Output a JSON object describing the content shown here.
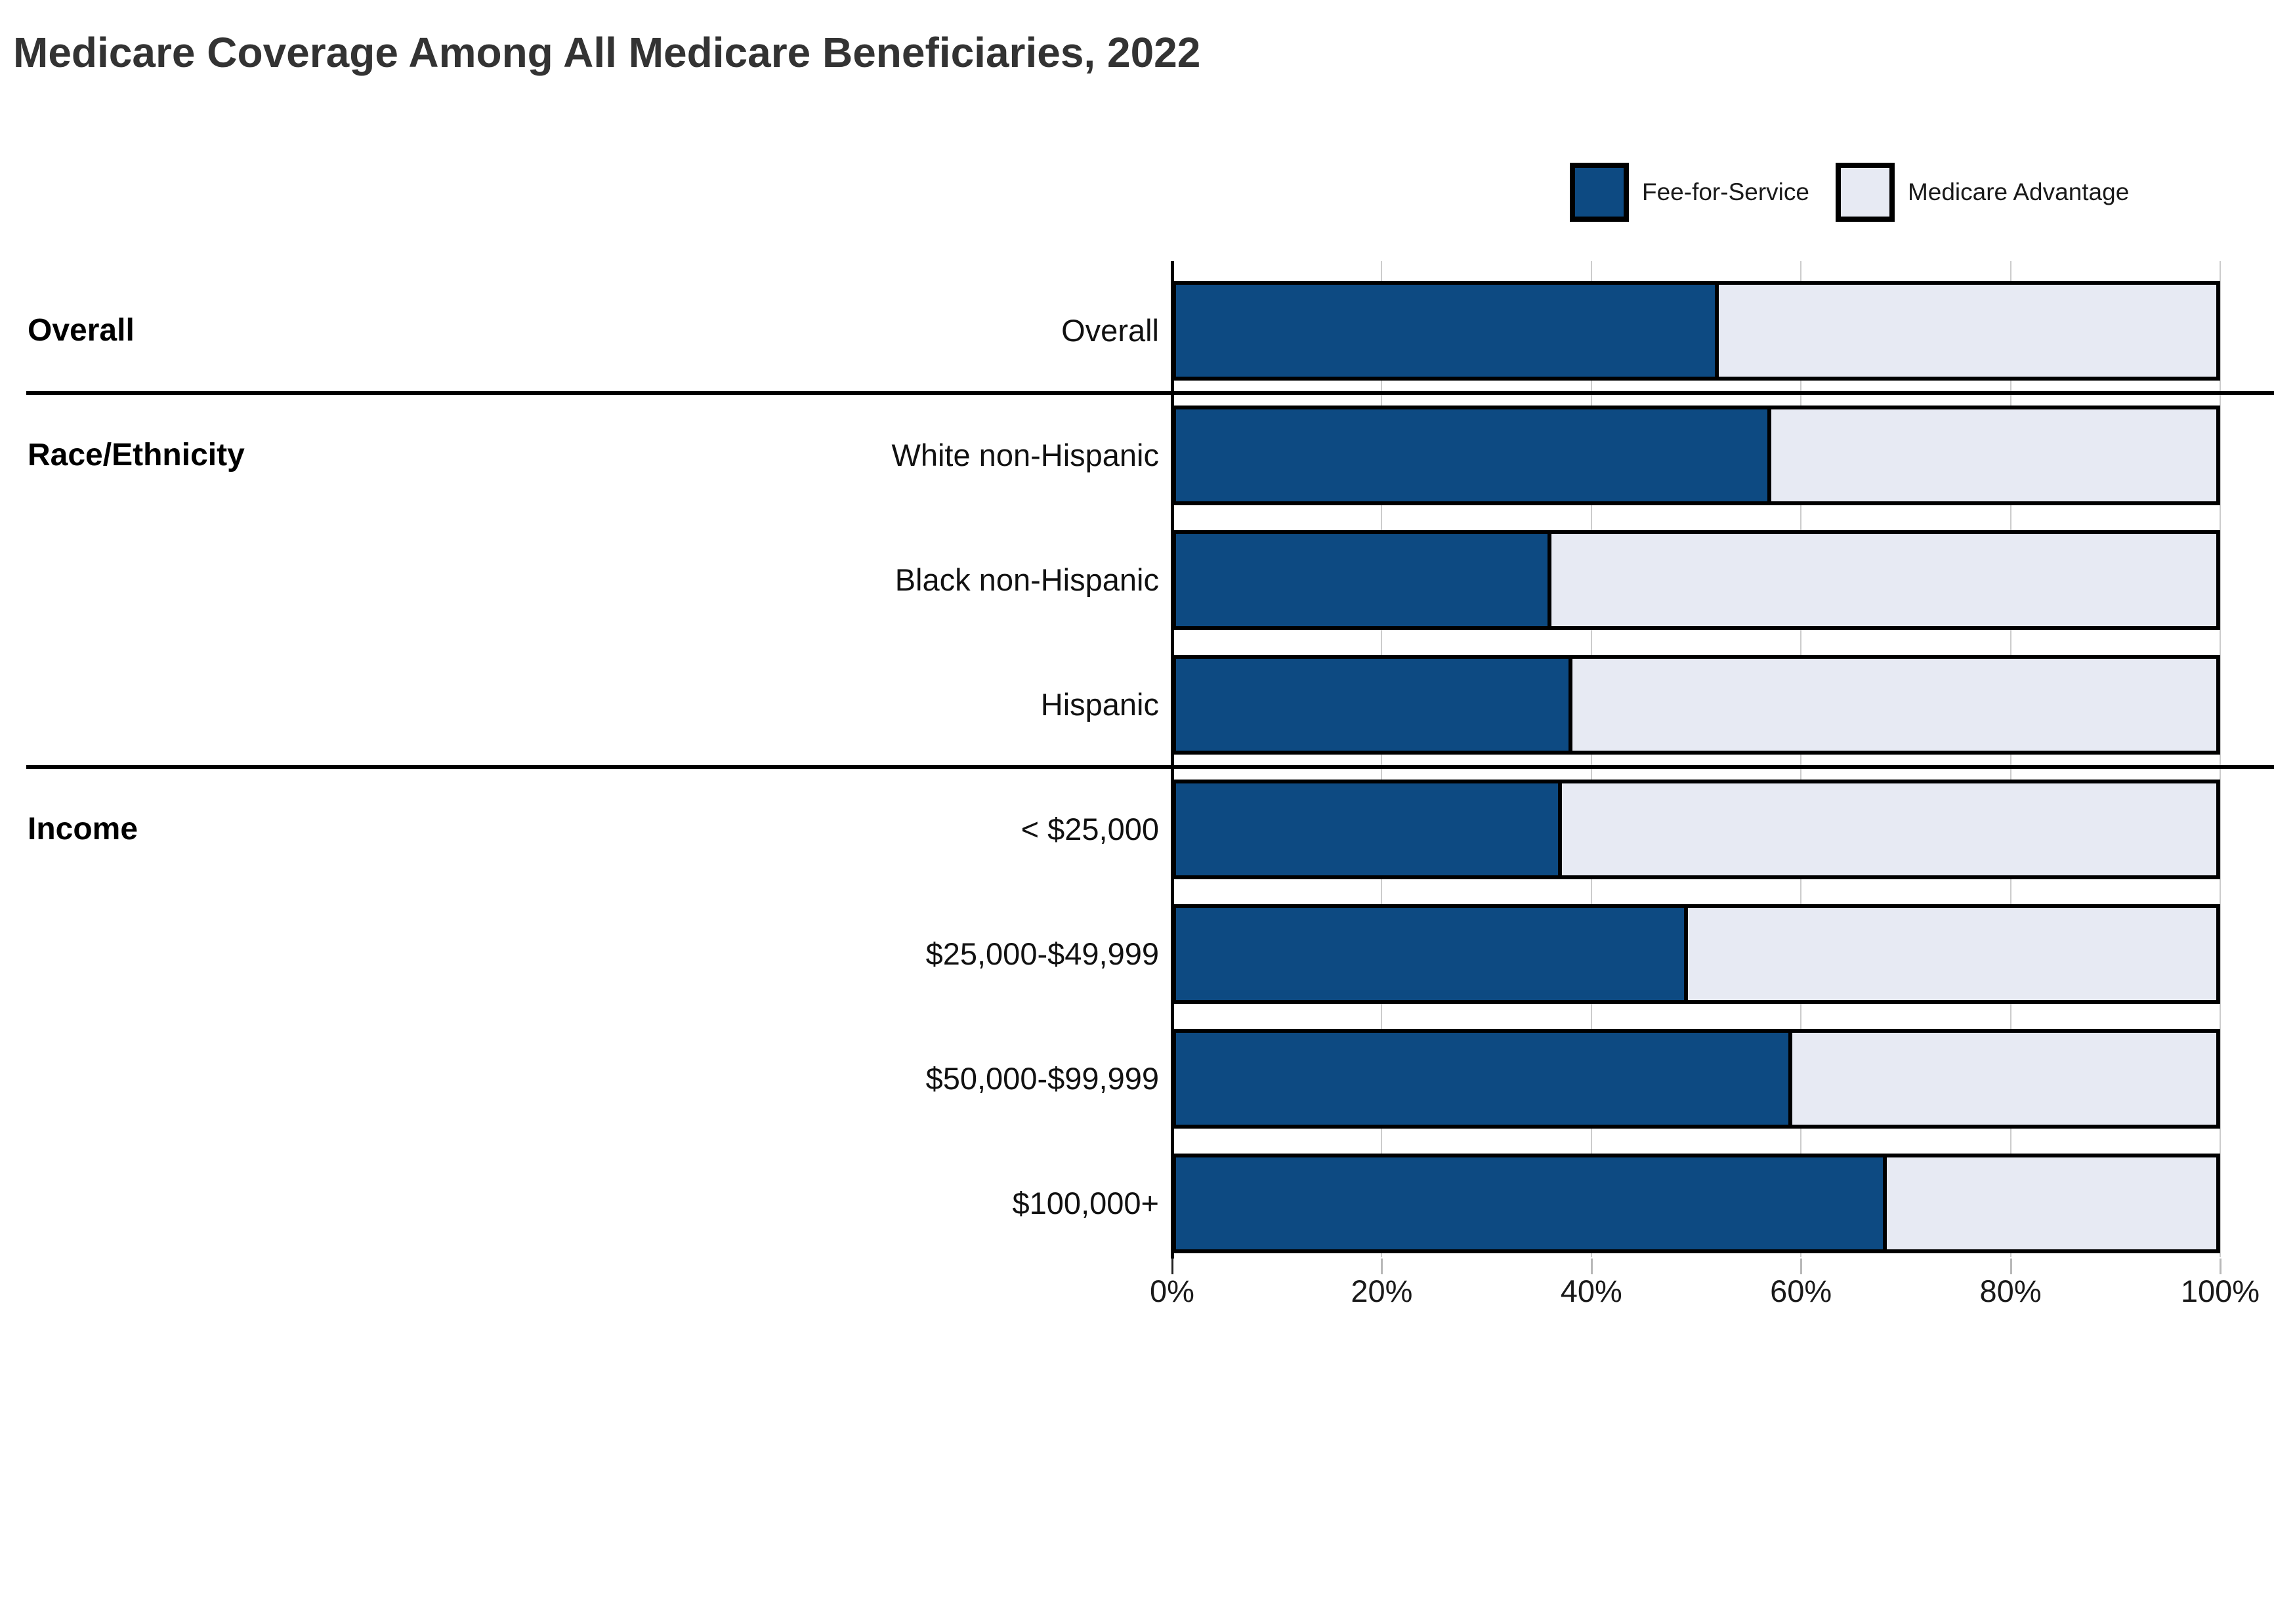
{
  "title": "Medicare Coverage Among All Medicare Beneficiaries, 2022",
  "legend": {
    "items": [
      {
        "label": "Fee-for-Service",
        "color": "#0d4a82"
      },
      {
        "label": "Medicare Advantage",
        "color": "#e7eaf3"
      }
    ]
  },
  "colors": {
    "fee_for_service": "#0d4a82",
    "medicare_advantage": "#e7eaf3",
    "bar_border": "#000000",
    "gridline": "#cccccc",
    "title_text": "#333333",
    "label_text": "#111111"
  },
  "chart_data": {
    "type": "bar",
    "orientation": "horizontal-stacked",
    "title": "Medicare Coverage Among All Medicare Beneficiaries, 2022",
    "units": "percent of beneficiaries",
    "categories": [
      "Overall",
      "White non-Hispanic",
      "Black non-Hispanic",
      "Hispanic",
      "< $25,000",
      "$25,000-$49,999",
      "$50,000-$99,999",
      "$100,000+"
    ],
    "series": [
      {
        "name": "Fee-for-Service",
        "values": [
          52,
          57,
          36,
          38,
          37,
          49,
          59,
          68
        ],
        "color": "#0d4a82"
      },
      {
        "name": "Medicare Advantage",
        "values": [
          48,
          43,
          64,
          62,
          63,
          51,
          41,
          32
        ],
        "color": "#e7eaf3"
      }
    ],
    "sections": [
      {
        "label": "Overall",
        "row_count": 1
      },
      {
        "label": "Race/Ethnicity",
        "row_count": 3
      },
      {
        "label": "Income",
        "row_count": 4
      }
    ],
    "xlabel": "",
    "ylabel": "",
    "xlim": [
      0,
      100
    ],
    "x_ticks": [
      "0%",
      "20%",
      "40%",
      "60%",
      "80%",
      "100%"
    ],
    "x_tick_values": [
      0,
      20,
      40,
      60,
      80,
      100
    ],
    "grid": true,
    "legend_position": "top-right"
  }
}
